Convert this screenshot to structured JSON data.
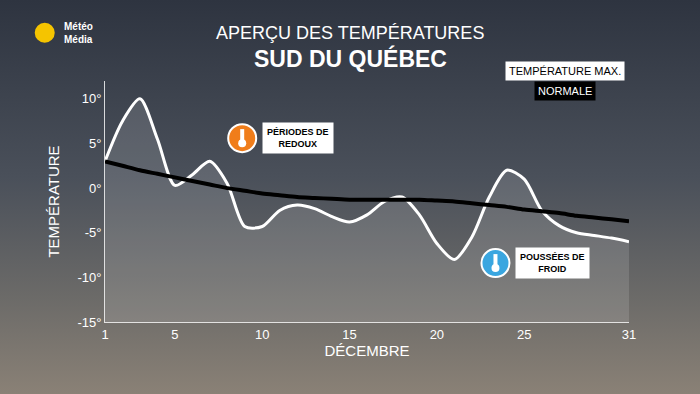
{
  "chart_data": {
    "type": "line",
    "logo": [
      "Météo",
      "Média"
    ],
    "title": "APERÇU DES TEMPÉRATURES",
    "subtitle": "SUD DU QUÉBEC",
    "xlabel": "DÉCEMBRE",
    "ylabel": "TEMPÉRATURE",
    "x": [
      1,
      2,
      3,
      4,
      5,
      6,
      7,
      8,
      9,
      10,
      11,
      12,
      13,
      14,
      15,
      16,
      17,
      18,
      19,
      20,
      21,
      22,
      23,
      24,
      25,
      26,
      27,
      28,
      29,
      30,
      31
    ],
    "series": [
      {
        "name": "TEMPÉRATURE MAX.",
        "color": "#ffffff",
        "values": [
          3,
          7.5,
          10,
          5.5,
          0.3,
          1.5,
          3,
          0.5,
          -4.3,
          -4.3,
          -2.5,
          -1.9,
          -2.3,
          -3.2,
          -3.8,
          -3,
          -1.5,
          -1,
          -3,
          -6.2,
          -8,
          -5.5,
          -1,
          2,
          1,
          -2.5,
          -4.2,
          -5,
          -5.3,
          -5.6,
          -6
        ]
      },
      {
        "name": "NORMALE",
        "color": "#000000",
        "values": [
          3,
          2.5,
          2,
          1.6,
          1.2,
          0.8,
          0.4,
          0,
          -0.3,
          -0.6,
          -0.8,
          -1,
          -1.1,
          -1.2,
          -1.3,
          -1.3,
          -1.3,
          -1.3,
          -1.3,
          -1.4,
          -1.5,
          -1.7,
          -1.9,
          -2.1,
          -2.4,
          -2.6,
          -2.8,
          -3.1,
          -3.3,
          -3.5,
          -3.7
        ]
      }
    ],
    "xlim": [
      1,
      31
    ],
    "xticks": [
      1,
      5,
      10,
      15,
      20,
      25,
      31
    ],
    "ylim": [
      -15,
      12
    ],
    "yticks": [
      {
        "value": -15,
        "label": "-15°"
      },
      {
        "value": -10,
        "label": "-10°"
      },
      {
        "value": -5,
        "label": "-5°"
      },
      {
        "value": 0,
        "label": "0°"
      },
      {
        "value": 5,
        "label": "5°"
      },
      {
        "value": 10,
        "label": "10°"
      }
    ],
    "grid": false,
    "annotations": [
      {
        "text": [
          "PÉRIODES DE",
          "REDOUX"
        ],
        "x": 10,
        "y": 5.6,
        "color": "#f07d1a"
      },
      {
        "text": [
          "POUSSÉES DE",
          "FROID"
        ],
        "x": 24.5,
        "y": -8.4,
        "color": "#3aa6e0"
      }
    ]
  }
}
